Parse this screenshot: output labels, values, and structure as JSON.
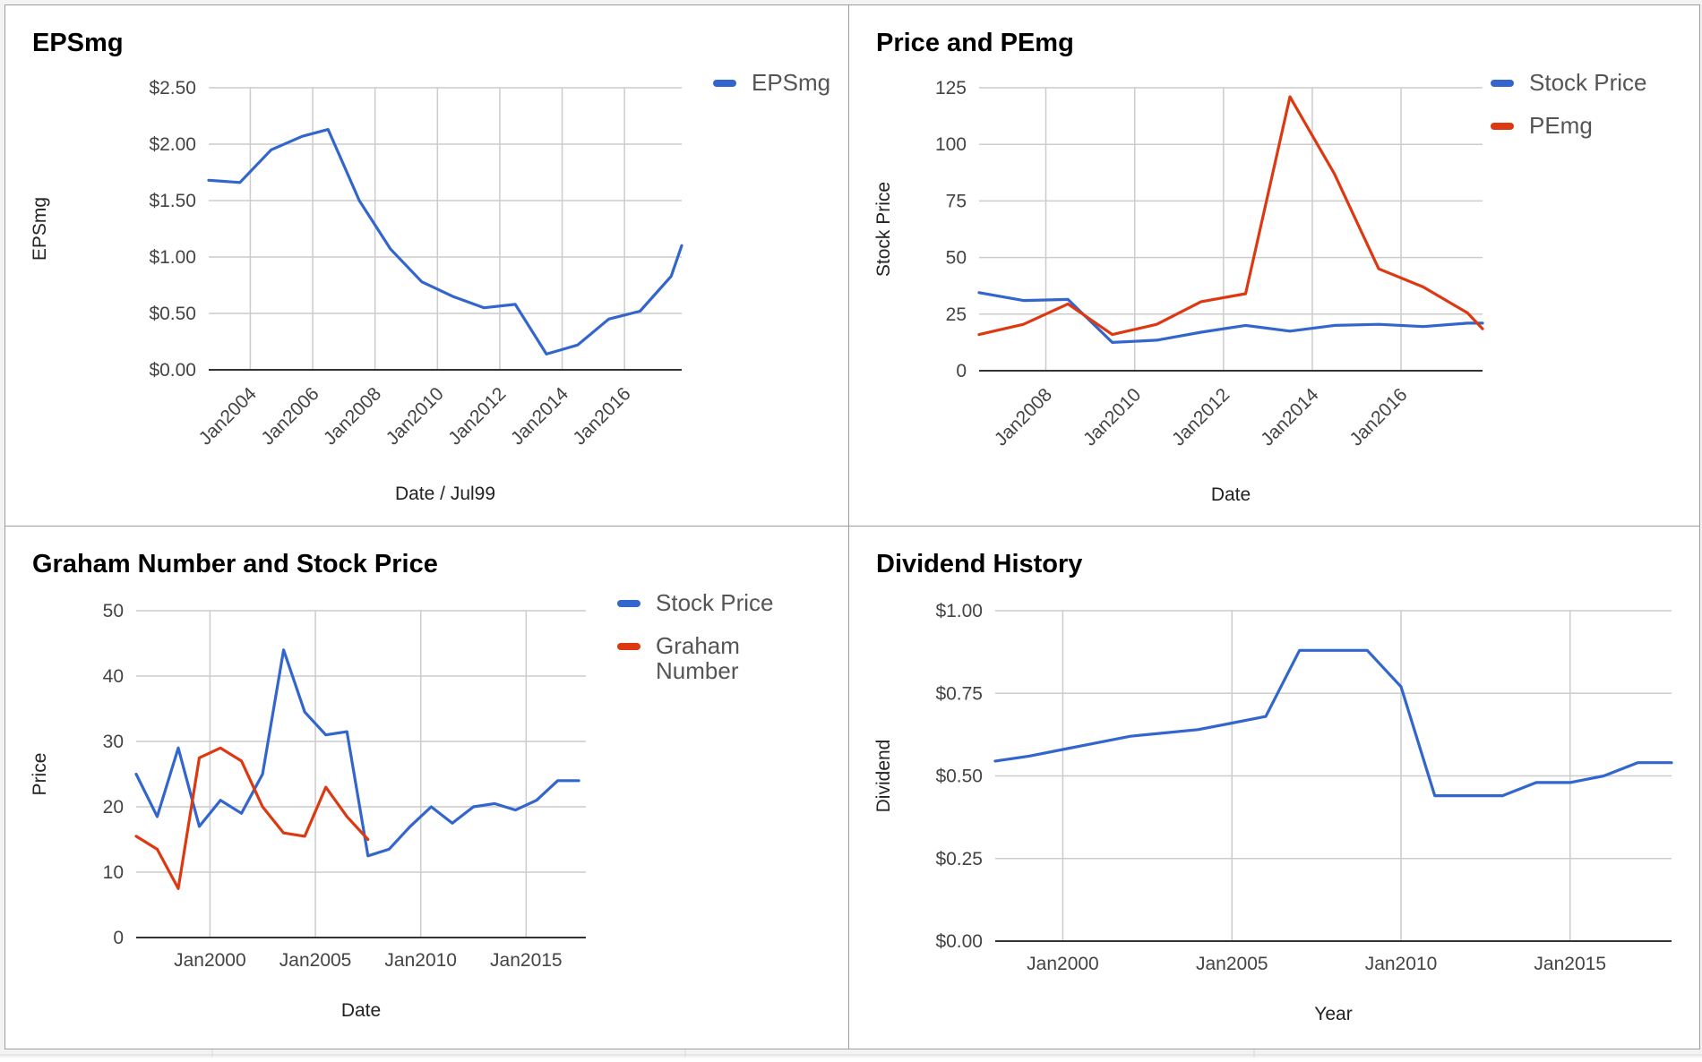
{
  "colors": {
    "blue": "#3366cc",
    "red": "#dc3912",
    "grid": "#cccccc",
    "baseline": "#333333"
  },
  "chart_data": [
    {
      "id": "eps",
      "type": "line",
      "title": "EPSmg",
      "xlabel": "Date / Jul99",
      "ylabel": "EPSmg",
      "x_type": "date",
      "xlim": [
        "2002-09-01",
        "2017-11-01"
      ],
      "ylim": [
        0,
        2.5
      ],
      "y_ticks": [
        0,
        0.5,
        1.0,
        1.5,
        2.0,
        2.5
      ],
      "y_tick_labels": [
        "$0.00",
        "$0.50",
        "$1.00",
        "$1.50",
        "$2.00",
        "$2.50"
      ],
      "x_ticks": [
        "2004-01-01",
        "2006-01-01",
        "2008-01-01",
        "2010-01-01",
        "2012-01-01",
        "2014-01-01",
        "2016-01-01"
      ],
      "x_tick_labels": [
        "Jan2004",
        "Jan2006",
        "Jan2008",
        "Jan2010",
        "Jan2012",
        "Jan2014",
        "Jan2016"
      ],
      "x_tick_rotate": -45,
      "grid": true,
      "legend_position": "right",
      "series": [
        {
          "name": "EPSmg",
          "color": "#3366cc",
          "x": [
            "2002-09-01",
            "2003-09-01",
            "2004-09-01",
            "2005-09-01",
            "2006-07-01",
            "2007-07-01",
            "2008-07-01",
            "2009-07-01",
            "2010-07-01",
            "2011-07-01",
            "2012-07-01",
            "2013-07-01",
            "2014-07-01",
            "2015-07-01",
            "2016-07-01",
            "2017-07-01",
            "2017-11-01"
          ],
          "values": [
            1.68,
            1.66,
            1.95,
            2.07,
            2.13,
            1.5,
            1.07,
            0.78,
            0.65,
            0.55,
            0.58,
            0.14,
            0.22,
            0.45,
            0.52,
            0.83,
            1.1
          ]
        }
      ]
    },
    {
      "id": "price-pe",
      "type": "line",
      "title": "Price and PEmg",
      "xlabel": "Date",
      "ylabel": "Stock Price",
      "x_type": "date",
      "xlim": [
        "2006-07-01",
        "2017-11-01"
      ],
      "ylim": [
        0,
        125
      ],
      "y_ticks": [
        0,
        25,
        50,
        75,
        100,
        125
      ],
      "y_tick_labels": [
        "0",
        "25",
        "50",
        "75",
        "100",
        "125"
      ],
      "x_ticks": [
        "2008-01-01",
        "2010-01-01",
        "2012-01-01",
        "2014-01-01",
        "2016-01-01"
      ],
      "x_tick_labels": [
        "Jan2008",
        "Jan2010",
        "Jan2012",
        "Jan2014",
        "Jan2016"
      ],
      "x_tick_rotate": -45,
      "grid": true,
      "legend_position": "right",
      "series": [
        {
          "name": "Stock Price",
          "color": "#3366cc",
          "x": [
            "2006-07-01",
            "2007-07-01",
            "2008-07-01",
            "2009-07-01",
            "2010-07-01",
            "2011-07-01",
            "2012-07-01",
            "2013-07-01",
            "2014-07-01",
            "2015-07-01",
            "2016-07-01",
            "2017-07-01",
            "2017-11-01"
          ],
          "values": [
            34.5,
            31,
            31.5,
            12.5,
            13.5,
            17,
            20,
            17.5,
            20,
            20.5,
            19.5,
            21,
            21
          ]
        },
        {
          "name": "PEmg",
          "color": "#dc3912",
          "x": [
            "2006-07-01",
            "2007-07-01",
            "2008-07-01",
            "2009-07-01",
            "2010-07-01",
            "2011-07-01",
            "2012-07-01",
            "2013-07-01",
            "2014-07-01",
            "2015-07-01",
            "2016-07-01",
            "2017-07-01",
            "2017-11-01"
          ],
          "values": [
            16,
            20.5,
            29.5,
            16,
            20.5,
            30.5,
            34,
            121,
            87,
            45,
            37,
            25.5,
            18.5
          ]
        }
      ]
    },
    {
      "id": "graham",
      "type": "line",
      "title": "Graham Number and Stock Price",
      "xlabel": "Date",
      "ylabel": "Price",
      "x_type": "date",
      "xlim": [
        "1996-07-01",
        "2017-11-01"
      ],
      "ylim": [
        0,
        50
      ],
      "y_ticks": [
        0,
        10,
        20,
        30,
        40,
        50
      ],
      "y_tick_labels": [
        "0",
        "10",
        "20",
        "30",
        "40",
        "50"
      ],
      "x_ticks": [
        "2000-01-01",
        "2005-01-01",
        "2010-01-01",
        "2015-01-01"
      ],
      "x_tick_labels": [
        "Jan2000",
        "Jan2005",
        "Jan2010",
        "Jan2015"
      ],
      "x_tick_rotate": 0,
      "grid": true,
      "legend_position": "right",
      "series": [
        {
          "name": "Stock Price",
          "color": "#3366cc",
          "x": [
            "1996-07-01",
            "1997-07-01",
            "1998-07-01",
            "1999-07-01",
            "2000-07-01",
            "2001-07-01",
            "2002-07-01",
            "2003-07-01",
            "2004-07-01",
            "2005-07-01",
            "2006-07-01",
            "2007-07-01",
            "2008-07-01",
            "2009-07-01",
            "2010-07-01",
            "2011-07-01",
            "2012-07-01",
            "2013-07-01",
            "2014-07-01",
            "2015-07-01",
            "2016-07-01",
            "2017-07-01"
          ],
          "values": [
            25,
            18.5,
            29,
            17,
            21,
            19,
            25,
            44,
            34.5,
            31,
            31.5,
            12.5,
            13.5,
            17,
            20,
            17.5,
            20,
            20.5,
            19.5,
            21,
            24,
            24
          ]
        },
        {
          "name": "Graham Number",
          "color": "#dc3912",
          "x": [
            "1996-07-01",
            "1997-07-01",
            "1998-07-01",
            "1999-07-01",
            "2000-07-01",
            "2001-07-01",
            "2002-07-01",
            "2003-07-01",
            "2004-07-01",
            "2005-07-01",
            "2006-07-01",
            "2007-07-01"
          ],
          "values": [
            15.5,
            13.5,
            7.5,
            27.5,
            29,
            27,
            20,
            16,
            15.5,
            23,
            18.5,
            15
          ]
        }
      ]
    },
    {
      "id": "dividend",
      "type": "line",
      "title": "Dividend History",
      "xlabel": "Year",
      "ylabel": "Dividend",
      "x_type": "date",
      "xlim": [
        "1998-01-01",
        "2018-01-01"
      ],
      "ylim": [
        0,
        1.0
      ],
      "y_ticks": [
        0,
        0.25,
        0.5,
        0.75,
        1.0
      ],
      "y_tick_labels": [
        "$0.00",
        "$0.25",
        "$0.50",
        "$0.75",
        "$1.00"
      ],
      "x_ticks": [
        "2000-01-01",
        "2005-01-01",
        "2010-01-01",
        "2015-01-01"
      ],
      "x_tick_labels": [
        "Jan2000",
        "Jan2005",
        "Jan2010",
        "Jan2015"
      ],
      "x_tick_rotate": 0,
      "grid": true,
      "legend_position": "none",
      "series": [
        {
          "name": "",
          "color": "#3366cc",
          "x": [
            "1998-01-01",
            "1999-01-01",
            "2000-01-01",
            "2001-01-01",
            "2002-01-01",
            "2003-01-01",
            "2004-01-01",
            "2005-01-01",
            "2006-01-01",
            "2007-01-01",
            "2008-01-01",
            "2009-01-01",
            "2010-01-01",
            "2011-01-01",
            "2012-01-01",
            "2013-01-01",
            "2014-01-01",
            "2015-01-01",
            "2016-01-01",
            "2017-01-01",
            "2018-01-01"
          ],
          "values": [
            0.545,
            0.56,
            0.58,
            0.6,
            0.62,
            0.63,
            0.64,
            0.66,
            0.68,
            0.88,
            0.88,
            0.88,
            0.77,
            0.44,
            0.44,
            0.44,
            0.48,
            0.48,
            0.5,
            0.54,
            0.54
          ]
        }
      ]
    }
  ]
}
